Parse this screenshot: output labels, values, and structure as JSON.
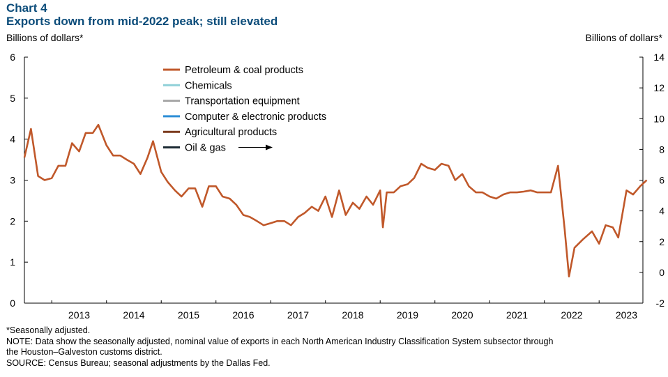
{
  "header": {
    "label": "Chart 4",
    "title": "Exports down from mid-2022 peak; still elevated"
  },
  "axes": {
    "left_unit": "Billions of dollars*",
    "right_unit": "Billions of dollars*"
  },
  "footer": {
    "footnote": "*Seasonally adjusted.",
    "note_line1": "NOTE: Data show the seasonally adjusted, nominal value of exports in each North American Industry Classification System subsector through",
    "note_line2": "the Houston–Galveston  customs district.",
    "source": "SOURCE: Census Bureau; seasonal adjustments by the Dallas Fed."
  },
  "chart_data": {
    "type": "line",
    "title": "Exports down from mid-2022 peak; still elevated",
    "xlabel": "",
    "ylabel_left": "Billions of dollars*",
    "ylabel_right": "Billions of dollars*",
    "xlim": [
      2012.5,
      2023.8
    ],
    "ylim_left": [
      0,
      6
    ],
    "ylim_right": [
      -2,
      14
    ],
    "yticks_left": [
      0,
      1,
      2,
      3,
      4,
      5,
      6
    ],
    "yticks_right": [
      -2,
      0,
      2,
      4,
      6,
      8,
      10,
      12,
      14
    ],
    "x_tick_labels": [
      "2013",
      "2014",
      "2015",
      "2016",
      "2017",
      "2018",
      "2019",
      "2020",
      "2021",
      "2022",
      "2023"
    ],
    "legend_position": "top-center",
    "oil_gas_arrow": "right",
    "series": [
      {
        "name": "Petroleum & coal products",
        "color": "#c0582a",
        "axis": "left",
        "points": [
          [
            2012.5,
            3.55
          ],
          [
            2012.62,
            4.25
          ],
          [
            2012.75,
            3.1
          ],
          [
            2012.87,
            3.0
          ],
          [
            2013.0,
            3.05
          ],
          [
            2013.12,
            3.35
          ],
          [
            2013.25,
            3.35
          ],
          [
            2013.37,
            3.9
          ],
          [
            2013.5,
            3.7
          ],
          [
            2013.62,
            4.15
          ],
          [
            2013.75,
            4.15
          ],
          [
            2013.85,
            4.35
          ],
          [
            2014.0,
            3.85
          ],
          [
            2014.12,
            3.6
          ],
          [
            2014.25,
            3.6
          ],
          [
            2014.37,
            3.5
          ],
          [
            2014.5,
            3.4
          ],
          [
            2014.62,
            3.15
          ],
          [
            2014.75,
            3.55
          ],
          [
            2014.85,
            3.95
          ],
          [
            2015.0,
            3.2
          ],
          [
            2015.12,
            2.95
          ],
          [
            2015.25,
            2.75
          ],
          [
            2015.37,
            2.6
          ],
          [
            2015.5,
            2.8
          ],
          [
            2015.62,
            2.8
          ],
          [
            2015.75,
            2.35
          ],
          [
            2015.87,
            2.85
          ],
          [
            2016.0,
            2.85
          ],
          [
            2016.12,
            2.6
          ],
          [
            2016.25,
            2.55
          ],
          [
            2016.37,
            2.4
          ],
          [
            2016.5,
            2.15
          ],
          [
            2016.62,
            2.1
          ],
          [
            2016.75,
            2.0
          ],
          [
            2016.87,
            1.9
          ],
          [
            2017.0,
            1.95
          ],
          [
            2017.12,
            2.0
          ],
          [
            2017.25,
            2.0
          ],
          [
            2017.37,
            1.9
          ],
          [
            2017.5,
            2.1
          ],
          [
            2017.62,
            2.2
          ],
          [
            2017.75,
            2.35
          ],
          [
            2017.87,
            2.25
          ],
          [
            2018.0,
            2.6
          ],
          [
            2018.12,
            2.1
          ],
          [
            2018.25,
            2.75
          ],
          [
            2018.37,
            2.15
          ],
          [
            2018.5,
            2.45
          ],
          [
            2018.62,
            2.3
          ],
          [
            2018.75,
            2.6
          ],
          [
            2018.87,
            2.4
          ],
          [
            2019.0,
            2.75
          ],
          [
            2019.05,
            1.85
          ],
          [
            2019.12,
            2.7
          ],
          [
            2019.25,
            2.7
          ],
          [
            2019.37,
            2.85
          ],
          [
            2019.5,
            2.9
          ],
          [
            2019.62,
            3.05
          ],
          [
            2019.75,
            3.4
          ],
          [
            2019.87,
            3.3
          ],
          [
            2020.0,
            3.25
          ],
          [
            2020.12,
            3.4
          ],
          [
            2020.25,
            3.35
          ],
          [
            2020.37,
            3.0
          ],
          [
            2020.5,
            3.15
          ],
          [
            2020.62,
            2.85
          ],
          [
            2020.75,
            2.7
          ],
          [
            2020.87,
            2.7
          ],
          [
            2021.0,
            2.6
          ],
          [
            2021.12,
            2.55
          ],
          [
            2021.25,
            2.65
          ],
          [
            2021.37,
            2.7
          ],
          [
            2021.5,
            2.7
          ],
          [
            2021.62,
            2.72
          ],
          [
            2021.75,
            2.75
          ],
          [
            2021.87,
            2.7
          ],
          [
            2022.0,
            2.7
          ],
          [
            2022.08,
            2.7
          ],
          [
            2022.12,
            2.7
          ],
          [
            2022.25,
            3.35
          ],
          [
            2022.37,
            1.8
          ],
          [
            2022.45,
            0.65
          ],
          [
            2022.55,
            1.35
          ],
          [
            2022.7,
            1.55
          ],
          [
            2022.87,
            1.75
          ],
          [
            2023.0,
            1.45
          ],
          [
            2023.12,
            1.9
          ],
          [
            2023.25,
            1.85
          ],
          [
            2023.35,
            1.6
          ],
          [
            2023.5,
            2.75
          ],
          [
            2023.62,
            2.65
          ],
          [
            2023.75,
            2.85
          ],
          [
            2023.87,
            3.0
          ]
        ]
      },
      {
        "name": "Chemicals",
        "color": "#8fd0d8",
        "axis": "left",
        "points": []
      },
      {
        "name": "Transportation equipment",
        "color": "#a6a6a6",
        "axis": "left",
        "points": []
      },
      {
        "name": "Computer & electronic products",
        "color": "#2e8fd6",
        "axis": "left",
        "points": []
      },
      {
        "name": "Agricultural products",
        "color": "#7b3a1d",
        "axis": "left",
        "points": []
      },
      {
        "name": "Oil & gas",
        "color": "#1c2a33",
        "axis": "right",
        "points": []
      }
    ]
  }
}
